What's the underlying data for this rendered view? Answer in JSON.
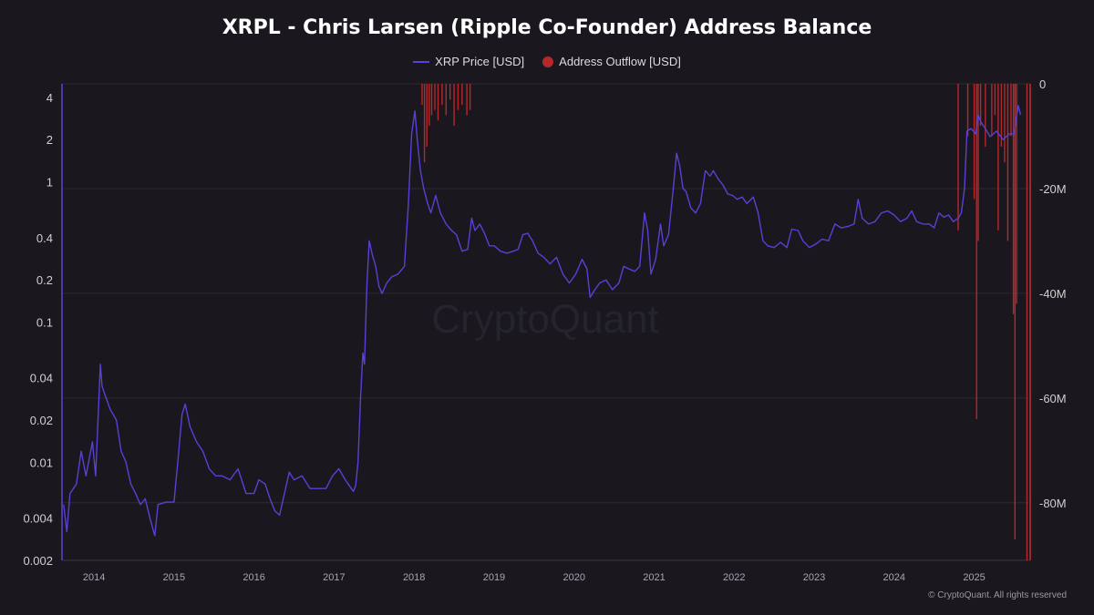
{
  "chart_data": {
    "type": "line",
    "title": "XRPL - Chris Larsen (Ripple Co-Founder) Address Balance",
    "watermark": "CryptoQuant",
    "footer": "© CryptoQuant. All rights reserved",
    "legend_placement": "top-center",
    "grid": true,
    "x_range": [
      2013.6,
      2025.7
    ],
    "x_ticks": [
      "2014",
      "2015",
      "2016",
      "2017",
      "2018",
      "2019",
      "2020",
      "2021",
      "2022",
      "2023",
      "2024",
      "2025"
    ],
    "y_left": {
      "scale": "log",
      "range": [
        0.002,
        5
      ],
      "ticks": [
        {
          "v": 4,
          "label": "4"
        },
        {
          "v": 2,
          "label": "2"
        },
        {
          "v": 1,
          "label": "1"
        },
        {
          "v": 0.4,
          "label": "0.4"
        },
        {
          "v": 0.2,
          "label": "0.2"
        },
        {
          "v": 0.1,
          "label": "0.1"
        },
        {
          "v": 0.04,
          "label": "0.04"
        },
        {
          "v": 0.02,
          "label": "0.02"
        },
        {
          "v": 0.01,
          "label": "0.01"
        },
        {
          "v": 0.004,
          "label": "0.004"
        },
        {
          "v": 0.002,
          "label": "0.002"
        }
      ]
    },
    "y_right": {
      "scale": "linear",
      "range": [
        -91000000,
        0
      ],
      "ticks": [
        {
          "v": 0,
          "label": "0"
        },
        {
          "v": -20000000,
          "label": "-20M"
        },
        {
          "v": -40000000,
          "label": "-40M"
        },
        {
          "v": -60000000,
          "label": "-60M"
        },
        {
          "v": -80000000,
          "label": "-80M"
        }
      ]
    },
    "series": [
      {
        "name": "XRP Price [USD]",
        "color": "#5b3fd6",
        "axis": "left",
        "points": [
          [
            2013.62,
            0.005
          ],
          [
            2013.66,
            0.0032
          ],
          [
            2013.7,
            0.006
          ],
          [
            2013.78,
            0.007
          ],
          [
            2013.84,
            0.012
          ],
          [
            2013.9,
            0.008
          ],
          [
            2013.98,
            0.014
          ],
          [
            2014.02,
            0.008
          ],
          [
            2014.08,
            0.05
          ],
          [
            2014.1,
            0.035
          ],
          [
            2014.14,
            0.03
          ],
          [
            2014.2,
            0.024
          ],
          [
            2014.28,
            0.02
          ],
          [
            2014.34,
            0.012
          ],
          [
            2014.4,
            0.01
          ],
          [
            2014.46,
            0.007
          ],
          [
            2014.52,
            0.006
          ],
          [
            2014.58,
            0.005
          ],
          [
            2014.64,
            0.0055
          ],
          [
            2014.7,
            0.004
          ],
          [
            2014.76,
            0.003
          ],
          [
            2014.8,
            0.005
          ],
          [
            2014.9,
            0.0052
          ],
          [
            2015.0,
            0.0052
          ],
          [
            2015.06,
            0.012
          ],
          [
            2015.1,
            0.022
          ],
          [
            2015.14,
            0.026
          ],
          [
            2015.2,
            0.018
          ],
          [
            2015.28,
            0.014
          ],
          [
            2015.36,
            0.012
          ],
          [
            2015.44,
            0.009
          ],
          [
            2015.52,
            0.008
          ],
          [
            2015.6,
            0.008
          ],
          [
            2015.7,
            0.0075
          ],
          [
            2015.8,
            0.009
          ],
          [
            2015.9,
            0.006
          ],
          [
            2016.0,
            0.006
          ],
          [
            2016.06,
            0.0075
          ],
          [
            2016.14,
            0.007
          ],
          [
            2016.2,
            0.0055
          ],
          [
            2016.26,
            0.0045
          ],
          [
            2016.32,
            0.0042
          ],
          [
            2016.38,
            0.006
          ],
          [
            2016.44,
            0.0085
          ],
          [
            2016.5,
            0.0075
          ],
          [
            2016.6,
            0.008
          ],
          [
            2016.7,
            0.0065
          ],
          [
            2016.8,
            0.0065
          ],
          [
            2016.9,
            0.0065
          ],
          [
            2016.98,
            0.008
          ],
          [
            2017.06,
            0.009
          ],
          [
            2017.14,
            0.0075
          ],
          [
            2017.2,
            0.0067
          ],
          [
            2017.24,
            0.0062
          ],
          [
            2017.27,
            0.0068
          ],
          [
            2017.3,
            0.01
          ],
          [
            2017.33,
            0.028
          ],
          [
            2017.36,
            0.06
          ],
          [
            2017.38,
            0.05
          ],
          [
            2017.41,
            0.18
          ],
          [
            2017.44,
            0.38
          ],
          [
            2017.48,
            0.3
          ],
          [
            2017.52,
            0.25
          ],
          [
            2017.56,
            0.18
          ],
          [
            2017.6,
            0.16
          ],
          [
            2017.66,
            0.19
          ],
          [
            2017.72,
            0.21
          ],
          [
            2017.8,
            0.22
          ],
          [
            2017.88,
            0.25
          ],
          [
            2017.93,
            0.7
          ],
          [
            2017.97,
            2.2
          ],
          [
            2018.01,
            3.2
          ],
          [
            2018.04,
            2.0
          ],
          [
            2018.08,
            1.2
          ],
          [
            2018.12,
            0.9
          ],
          [
            2018.17,
            0.7
          ],
          [
            2018.21,
            0.6
          ],
          [
            2018.27,
            0.8
          ],
          [
            2018.33,
            0.6
          ],
          [
            2018.4,
            0.5
          ],
          [
            2018.47,
            0.45
          ],
          [
            2018.53,
            0.42
          ],
          [
            2018.6,
            0.32
          ],
          [
            2018.67,
            0.33
          ],
          [
            2018.72,
            0.55
          ],
          [
            2018.76,
            0.45
          ],
          [
            2018.82,
            0.5
          ],
          [
            2018.88,
            0.43
          ],
          [
            2018.94,
            0.35
          ],
          [
            2019.0,
            0.35
          ],
          [
            2019.08,
            0.32
          ],
          [
            2019.16,
            0.31
          ],
          [
            2019.24,
            0.32
          ],
          [
            2019.3,
            0.33
          ],
          [
            2019.36,
            0.42
          ],
          [
            2019.42,
            0.43
          ],
          [
            2019.48,
            0.38
          ],
          [
            2019.55,
            0.31
          ],
          [
            2019.62,
            0.29
          ],
          [
            2019.7,
            0.26
          ],
          [
            2019.78,
            0.29
          ],
          [
            2019.86,
            0.22
          ],
          [
            2019.94,
            0.19
          ],
          [
            2020.02,
            0.22
          ],
          [
            2020.1,
            0.28
          ],
          [
            2020.16,
            0.24
          ],
          [
            2020.2,
            0.15
          ],
          [
            2020.26,
            0.17
          ],
          [
            2020.32,
            0.19
          ],
          [
            2020.4,
            0.2
          ],
          [
            2020.48,
            0.17
          ],
          [
            2020.56,
            0.19
          ],
          [
            2020.62,
            0.25
          ],
          [
            2020.68,
            0.24
          ],
          [
            2020.76,
            0.23
          ],
          [
            2020.82,
            0.25
          ],
          [
            2020.88,
            0.6
          ],
          [
            2020.92,
            0.45
          ],
          [
            2020.96,
            0.22
          ],
          [
            2021.02,
            0.28
          ],
          [
            2021.08,
            0.5
          ],
          [
            2021.12,
            0.35
          ],
          [
            2021.18,
            0.42
          ],
          [
            2021.24,
            0.9
          ],
          [
            2021.28,
            1.6
          ],
          [
            2021.32,
            1.3
          ],
          [
            2021.36,
            0.9
          ],
          [
            2021.4,
            0.85
          ],
          [
            2021.46,
            0.65
          ],
          [
            2021.52,
            0.6
          ],
          [
            2021.58,
            0.7
          ],
          [
            2021.64,
            1.2
          ],
          [
            2021.7,
            1.1
          ],
          [
            2021.74,
            1.2
          ],
          [
            2021.8,
            1.05
          ],
          [
            2021.86,
            0.95
          ],
          [
            2021.92,
            0.82
          ],
          [
            2021.98,
            0.8
          ],
          [
            2022.04,
            0.75
          ],
          [
            2022.1,
            0.78
          ],
          [
            2022.16,
            0.7
          ],
          [
            2022.24,
            0.78
          ],
          [
            2022.3,
            0.6
          ],
          [
            2022.36,
            0.38
          ],
          [
            2022.42,
            0.35
          ],
          [
            2022.5,
            0.34
          ],
          [
            2022.58,
            0.37
          ],
          [
            2022.66,
            0.34
          ],
          [
            2022.72,
            0.46
          ],
          [
            2022.8,
            0.45
          ],
          [
            2022.86,
            0.38
          ],
          [
            2022.94,
            0.34
          ],
          [
            2023.02,
            0.36
          ],
          [
            2023.1,
            0.39
          ],
          [
            2023.18,
            0.38
          ],
          [
            2023.26,
            0.5
          ],
          [
            2023.34,
            0.47
          ],
          [
            2023.42,
            0.48
          ],
          [
            2023.5,
            0.5
          ],
          [
            2023.55,
            0.75
          ],
          [
            2023.6,
            0.55
          ],
          [
            2023.68,
            0.5
          ],
          [
            2023.76,
            0.52
          ],
          [
            2023.84,
            0.6
          ],
          [
            2023.92,
            0.62
          ],
          [
            2024.0,
            0.58
          ],
          [
            2024.08,
            0.52
          ],
          [
            2024.16,
            0.55
          ],
          [
            2024.22,
            0.62
          ],
          [
            2024.28,
            0.52
          ],
          [
            2024.36,
            0.5
          ],
          [
            2024.44,
            0.5
          ],
          [
            2024.5,
            0.47
          ],
          [
            2024.56,
            0.6
          ],
          [
            2024.62,
            0.56
          ],
          [
            2024.68,
            0.58
          ],
          [
            2024.74,
            0.52
          ],
          [
            2024.8,
            0.55
          ],
          [
            2024.84,
            0.6
          ],
          [
            2024.88,
            0.9
          ],
          [
            2024.91,
            2.3
          ],
          [
            2024.96,
            2.4
          ],
          [
            2025.02,
            2.2
          ],
          [
            2025.05,
            3.0
          ],
          [
            2025.08,
            2.7
          ],
          [
            2025.14,
            2.4
          ],
          [
            2025.2,
            2.1
          ],
          [
            2025.28,
            2.3
          ],
          [
            2025.36,
            2.0
          ],
          [
            2025.44,
            2.2
          ],
          [
            2025.5,
            2.2
          ],
          [
            2025.55,
            3.5
          ],
          [
            2025.58,
            3.0
          ]
        ]
      },
      {
        "name": "Address Outflow [USD]",
        "color": "#b5282b",
        "axis": "right",
        "type": "bar",
        "points": [
          [
            2018.1,
            -4000000
          ],
          [
            2018.13,
            -15000000
          ],
          [
            2018.16,
            -12000000
          ],
          [
            2018.19,
            -8000000
          ],
          [
            2018.22,
            -6000000
          ],
          [
            2018.26,
            -5000000
          ],
          [
            2018.3,
            -7000000
          ],
          [
            2018.35,
            -4000000
          ],
          [
            2018.4,
            -6000000
          ],
          [
            2018.45,
            -3000000
          ],
          [
            2018.5,
            -8000000
          ],
          [
            2018.55,
            -5000000
          ],
          [
            2018.6,
            -4000000
          ],
          [
            2018.66,
            -6000000
          ],
          [
            2018.7,
            -5000000
          ],
          [
            2024.8,
            -28000000
          ],
          [
            2024.92,
            -10000000
          ],
          [
            2025.0,
            -22000000
          ],
          [
            2025.03,
            -64000000
          ],
          [
            2025.05,
            -30000000
          ],
          [
            2025.08,
            -8000000
          ],
          [
            2025.14,
            -12000000
          ],
          [
            2025.22,
            -10000000
          ],
          [
            2025.26,
            -6000000
          ],
          [
            2025.3,
            -28000000
          ],
          [
            2025.34,
            -12000000
          ],
          [
            2025.38,
            -15000000
          ],
          [
            2025.42,
            -30000000
          ],
          [
            2025.46,
            -10000000
          ],
          [
            2025.49,
            -44000000
          ],
          [
            2025.51,
            -87000000
          ],
          [
            2025.53,
            -42000000
          ],
          [
            2025.66,
            -91000000
          ]
        ]
      }
    ]
  }
}
